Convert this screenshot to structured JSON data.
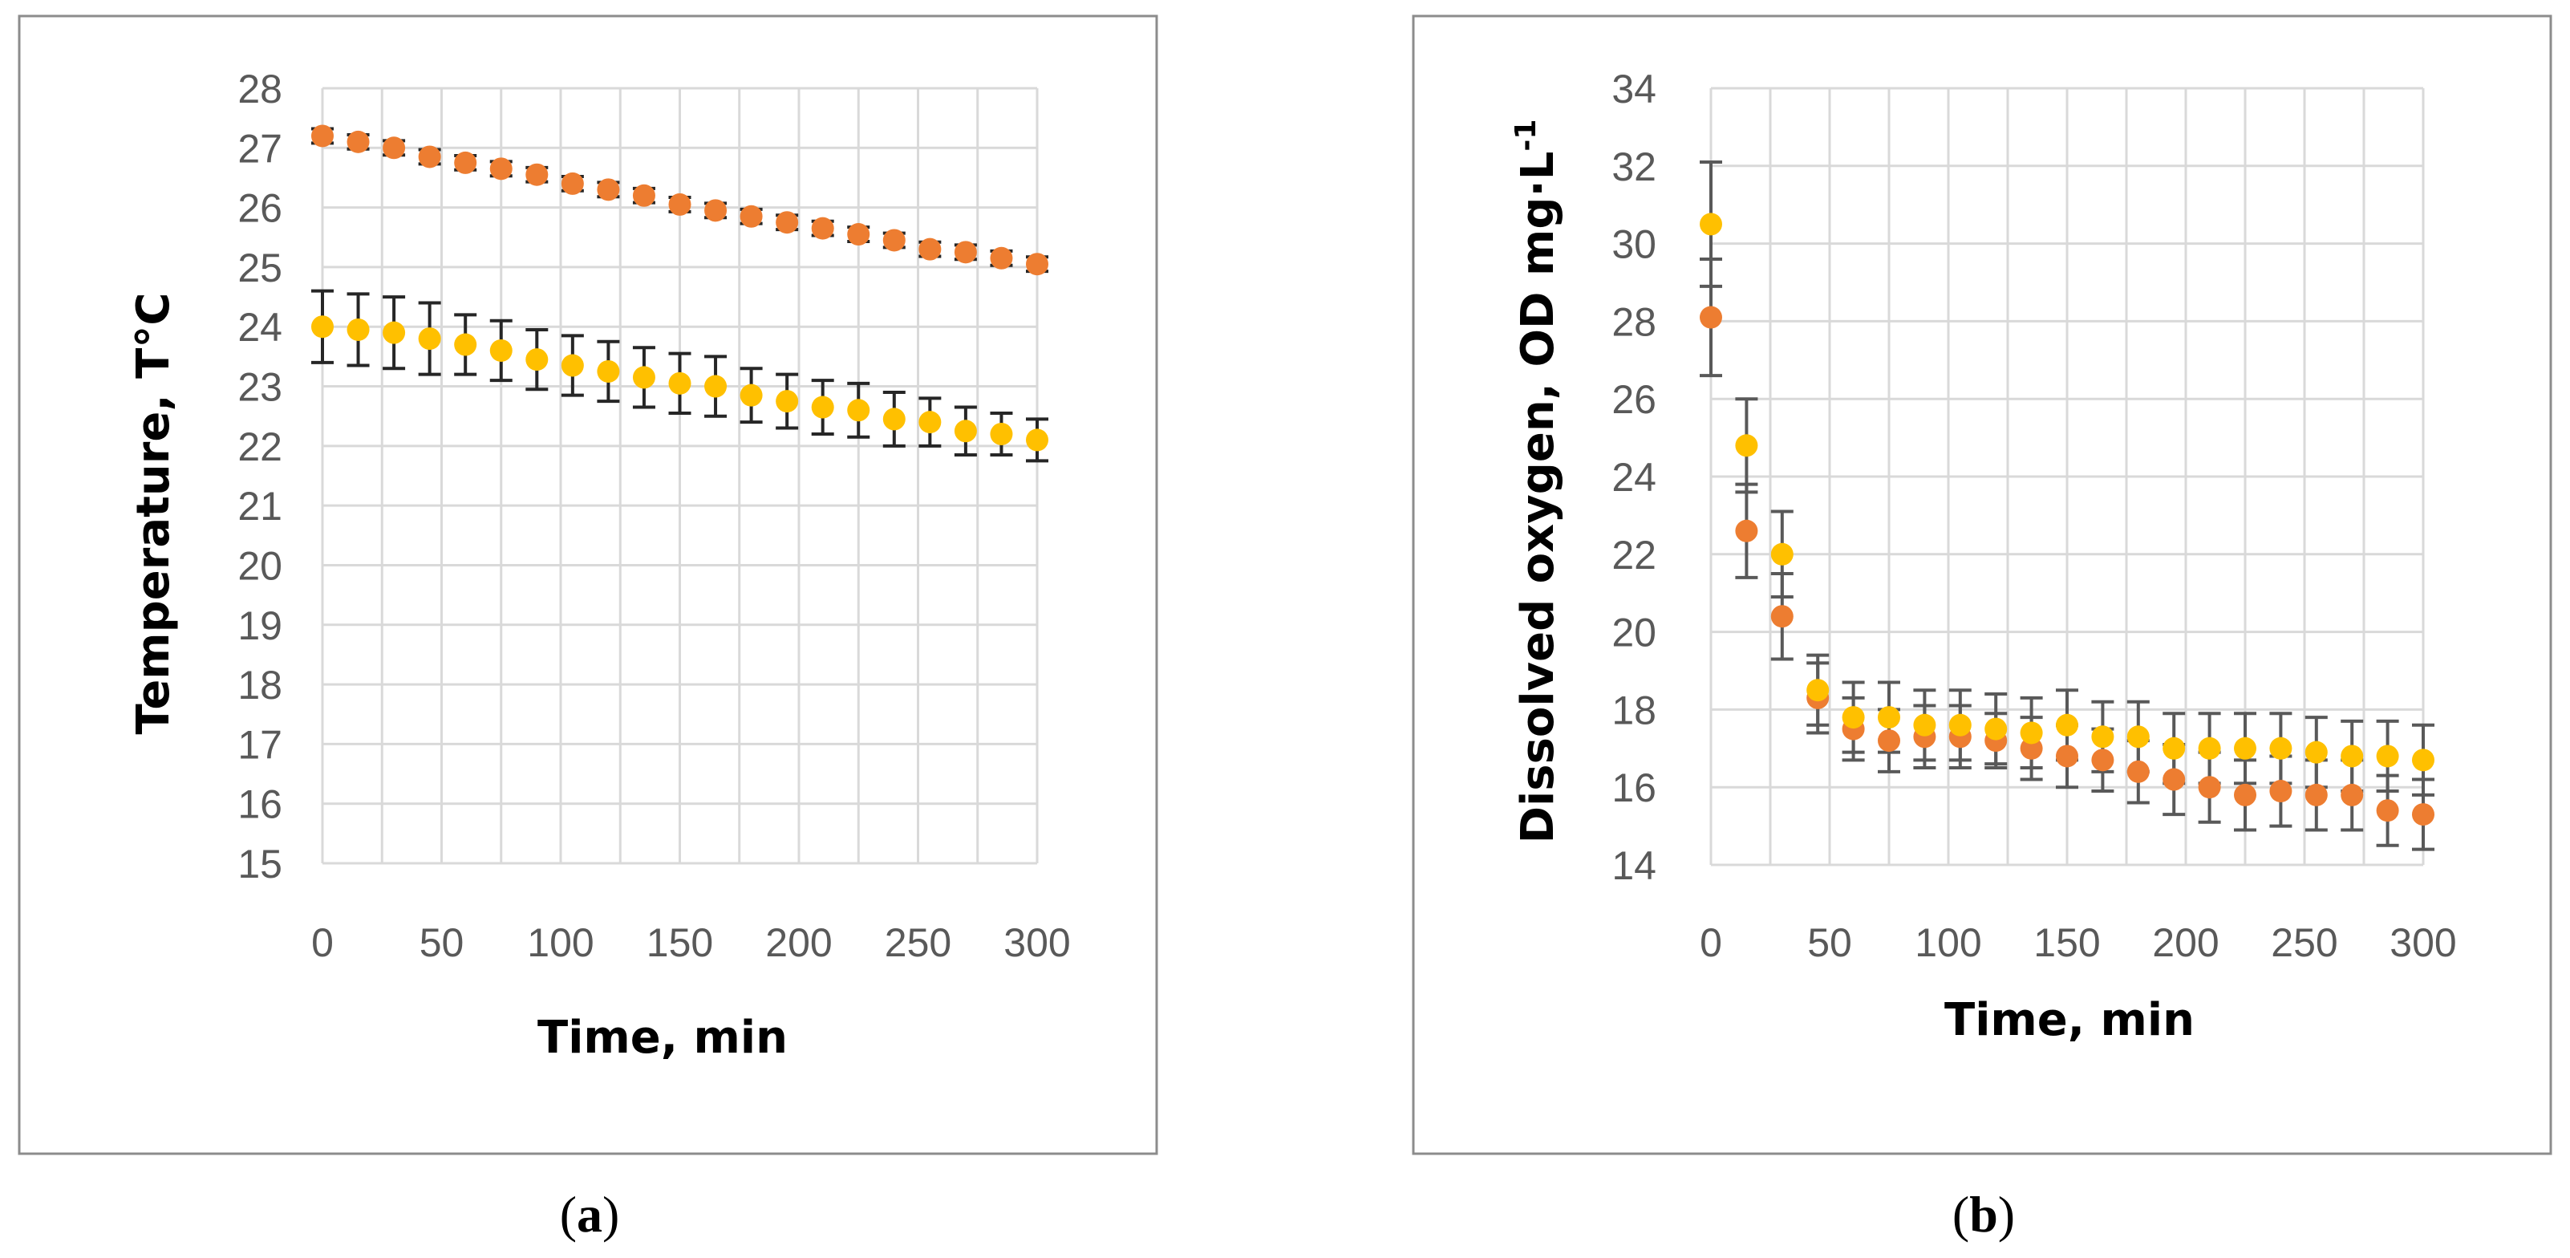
{
  "panels": [
    {
      "label": "a",
      "chart_data": {
        "type": "scatter",
        "title": "",
        "xlabel": "Time, min",
        "ylabel": "Temperature, T°C",
        "xlim": [
          0,
          300
        ],
        "ylim": [
          15,
          28
        ],
        "xticks": [
          0,
          50,
          100,
          150,
          200,
          250,
          300
        ],
        "yticks": [
          15,
          16,
          17,
          18,
          19,
          20,
          21,
          22,
          23,
          24,
          25,
          26,
          27,
          28
        ],
        "grid": true,
        "legend": "none",
        "error_bar_color": "#262626",
        "series": [
          {
            "color": "#ed7d31",
            "x": [
              0,
              15,
              30,
              45,
              60,
              75,
              90,
              105,
              120,
              135,
              150,
              165,
              180,
              195,
              210,
              225,
              240,
              255,
              270,
              285,
              300
            ],
            "values": [
              27.2,
              27.1,
              27.0,
              26.85,
              26.75,
              26.65,
              26.55,
              26.4,
              26.3,
              26.2,
              26.05,
              25.95,
              25.85,
              25.75,
              25.65,
              25.55,
              25.45,
              25.3,
              25.25,
              25.15,
              25.05
            ],
            "error": [
              0.12,
              0.12,
              0.12,
              0.12,
              0.12,
              0.12,
              0.12,
              0.12,
              0.12,
              0.12,
              0.12,
              0.12,
              0.12,
              0.12,
              0.12,
              0.12,
              0.12,
              0.12,
              0.12,
              0.12,
              0.12
            ]
          },
          {
            "color": "#ffc000",
            "x": [
              0,
              15,
              30,
              45,
              60,
              75,
              90,
              105,
              120,
              135,
              150,
              165,
              180,
              195,
              210,
              225,
              240,
              255,
              270,
              285,
              300
            ],
            "values": [
              24.0,
              23.95,
              23.9,
              23.8,
              23.7,
              23.6,
              23.45,
              23.35,
              23.25,
              23.15,
              23.05,
              23.0,
              22.85,
              22.75,
              22.65,
              22.6,
              22.45,
              22.4,
              22.25,
              22.2,
              22.1
            ],
            "error": [
              0.6,
              0.6,
              0.6,
              0.6,
              0.5,
              0.5,
              0.5,
              0.5,
              0.5,
              0.5,
              0.5,
              0.5,
              0.45,
              0.45,
              0.45,
              0.45,
              0.45,
              0.4,
              0.4,
              0.35,
              0.35
            ]
          }
        ]
      }
    },
    {
      "label": "b",
      "chart_data": {
        "type": "scatter",
        "title": "",
        "xlabel": "Time, min",
        "ylabel": "Dissolved oxygen, OD mg·L",
        "ylabel_sup": "-1",
        "xlim": [
          0,
          300
        ],
        "ylim": [
          14,
          34
        ],
        "xticks": [
          0,
          50,
          100,
          150,
          200,
          250,
          300
        ],
        "yticks": [
          14,
          16,
          18,
          20,
          22,
          24,
          26,
          28,
          30,
          32,
          34
        ],
        "grid": true,
        "legend": "none",
        "error_bar_color": "#595959",
        "series": [
          {
            "color": "#ed7d31",
            "x": [
              0,
              15,
              30,
              45,
              60,
              75,
              90,
              105,
              120,
              135,
              150,
              165,
              180,
              195,
              210,
              225,
              240,
              255,
              270,
              285,
              300
            ],
            "values": [
              28.1,
              22.6,
              20.4,
              18.3,
              17.5,
              17.2,
              17.3,
              17.3,
              17.2,
              17.0,
              16.8,
              16.7,
              16.4,
              16.2,
              16.0,
              15.8,
              15.9,
              15.8,
              15.8,
              15.4,
              15.3
            ],
            "error": [
              1.5,
              1.2,
              1.1,
              0.9,
              0.8,
              0.8,
              0.8,
              0.8,
              0.7,
              0.8,
              0.8,
              0.8,
              0.8,
              0.9,
              0.9,
              0.9,
              0.9,
              0.9,
              0.9,
              0.9,
              0.9
            ]
          },
          {
            "color": "#ffc000",
            "x": [
              0,
              15,
              30,
              45,
              60,
              75,
              90,
              105,
              120,
              135,
              150,
              165,
              180,
              195,
              210,
              225,
              240,
              255,
              270,
              285,
              300
            ],
            "values": [
              30.5,
              24.8,
              22.0,
              18.5,
              17.8,
              17.8,
              17.6,
              17.6,
              17.5,
              17.4,
              17.6,
              17.3,
              17.3,
              17.0,
              17.0,
              17.0,
              17.0,
              16.9,
              16.8,
              16.8,
              16.7
            ],
            "error": [
              1.6,
              1.2,
              1.1,
              0.9,
              0.9,
              0.9,
              0.9,
              0.9,
              0.9,
              0.9,
              0.9,
              0.9,
              0.9,
              0.9,
              0.9,
              0.9,
              0.9,
              0.9,
              0.9,
              0.9,
              0.9
            ]
          }
        ]
      }
    }
  ]
}
